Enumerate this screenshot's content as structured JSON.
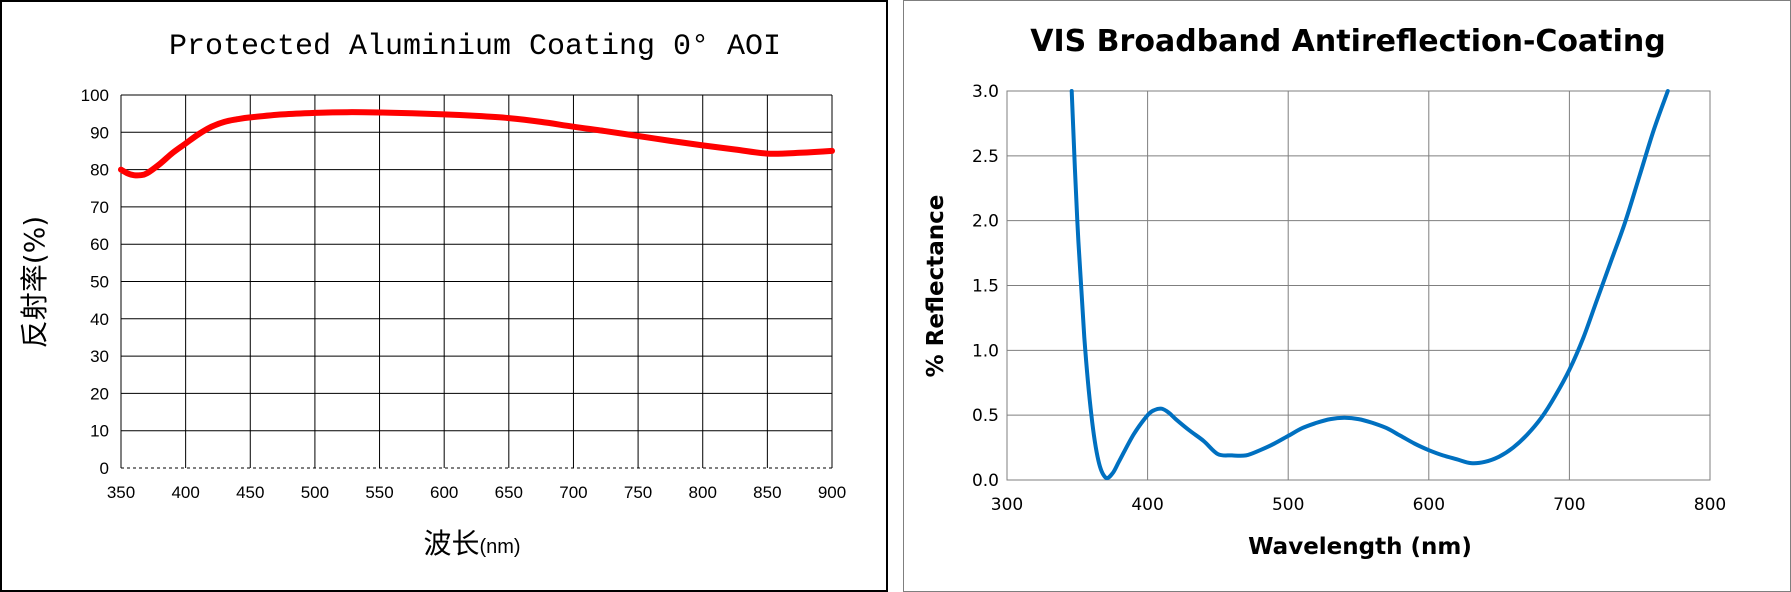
{
  "chart_data": [
    {
      "type": "line",
      "title": "Protected Aluminium Coating 0°  AOI",
      "xlabel": "波长",
      "xlabel_unit": "(nm)",
      "ylabel": "反射率(%)",
      "xlim": [
        350,
        900
      ],
      "ylim": [
        0,
        100
      ],
      "xticks": [
        "350",
        "400",
        "450",
        "500",
        "550",
        "600",
        "650",
        "700",
        "750",
        "800",
        "850",
        "900"
      ],
      "yticks": [
        "0",
        "10",
        "20",
        "30",
        "40",
        "50",
        "60",
        "70",
        "80",
        "90",
        "100"
      ],
      "grid": true,
      "colors": {
        "line": "#ff0000",
        "grid": "#000000"
      },
      "series": [
        {
          "x": [
            350,
            355,
            360,
            365,
            370,
            380,
            390,
            400,
            410,
            420,
            430,
            440,
            450,
            475,
            500,
            525,
            550,
            575,
            600,
            625,
            650,
            675,
            700,
            725,
            750,
            775,
            800,
            825,
            850,
            875,
            900
          ],
          "values": [
            80,
            79,
            78.5,
            78.5,
            79,
            81.5,
            84.5,
            87,
            89.5,
            91.5,
            92.8,
            93.5,
            94,
            94.8,
            95.2,
            95.4,
            95.3,
            95.1,
            94.8,
            94.4,
            93.8,
            92.8,
            91.5,
            90.3,
            89,
            87.7,
            86.5,
            85.4,
            84.3,
            84.5,
            85
          ]
        }
      ]
    },
    {
      "type": "line",
      "title": "VIS Broadband Antireflection-Coating",
      "xlabel": "Wavelength (nm)",
      "ylabel": "% Reflectance",
      "xlim": [
        300,
        800
      ],
      "ylim": [
        0,
        3
      ],
      "xticks": [
        "300",
        "400",
        "500",
        "600",
        "700",
        "800"
      ],
      "yticks": [
        "0.0",
        "0.5",
        "1.0",
        "1.5",
        "2.0",
        "2.5",
        "3.0"
      ],
      "grid": true,
      "colors": {
        "line": "#0070c0",
        "grid": "#7f7f7f"
      },
      "series": [
        {
          "x": [
            346,
            350,
            355,
            360,
            365,
            370,
            375,
            380,
            390,
            400,
            405,
            410,
            415,
            420,
            430,
            440,
            450,
            460,
            470,
            480,
            490,
            500,
            510,
            520,
            530,
            540,
            550,
            560,
            570,
            580,
            590,
            600,
            610,
            620,
            630,
            640,
            650,
            660,
            670,
            680,
            690,
            700,
            710,
            720,
            730,
            740,
            750,
            760,
            770
          ],
          "values": [
            3.0,
            2.0,
            1.1,
            0.5,
            0.15,
            0.02,
            0.05,
            0.15,
            0.35,
            0.5,
            0.54,
            0.55,
            0.52,
            0.47,
            0.38,
            0.3,
            0.2,
            0.19,
            0.19,
            0.23,
            0.28,
            0.34,
            0.4,
            0.44,
            0.47,
            0.48,
            0.47,
            0.44,
            0.4,
            0.34,
            0.28,
            0.23,
            0.19,
            0.16,
            0.13,
            0.14,
            0.18,
            0.25,
            0.35,
            0.48,
            0.65,
            0.85,
            1.1,
            1.4,
            1.7,
            2.0,
            2.35,
            2.7,
            3.0
          ]
        }
      ]
    }
  ]
}
